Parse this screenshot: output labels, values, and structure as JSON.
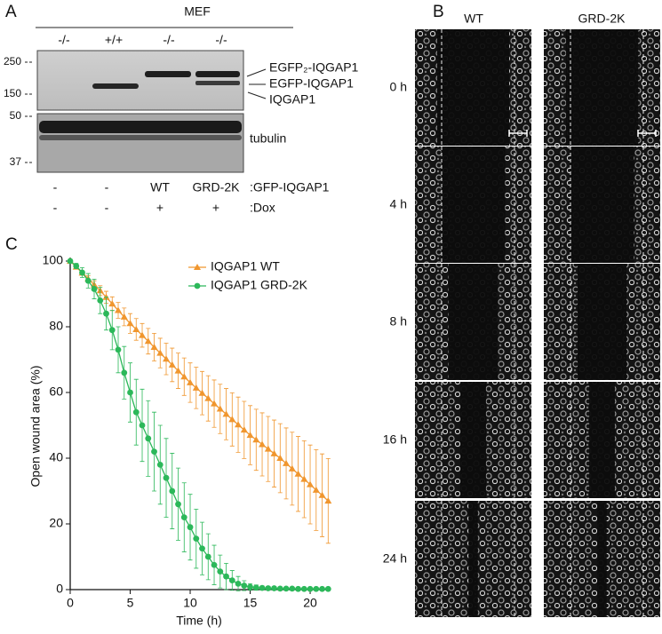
{
  "panel_a": {
    "label": "A",
    "group": "MEF",
    "genotypes": [
      "-/-",
      "+/+",
      "-/-",
      "-/-"
    ],
    "markers": [
      "250",
      "150",
      "50",
      "37"
    ],
    "band_labels": [
      "EGFP₂-IQGAP1",
      "EGFP-IQGAP1",
      "IQGAP1"
    ],
    "loading_label": "tubulin",
    "construct_row": [
      "-",
      "-",
      "WT",
      "GRD-2K",
      ":GFP-IQGAP1"
    ],
    "dox_row": [
      "-",
      "-",
      "+",
      "+",
      ":Dox"
    ]
  },
  "panel_b": {
    "label": "B",
    "columns": [
      "WT",
      "GRD-2K"
    ],
    "rows": [
      "0 h",
      "4 h",
      "8 h",
      "16 h",
      "24 h"
    ]
  },
  "chart_data": {
    "type": "line",
    "panel_label": "C",
    "x_label": "Time (h)",
    "y_label": "Open wound area (%)",
    "xlim": [
      0,
      21.7
    ],
    "ylim": [
      0,
      100
    ],
    "xticks": [
      0,
      5,
      10,
      15,
      20
    ],
    "yticks": [
      0,
      20,
      40,
      60,
      80,
      100
    ],
    "x": [
      0,
      0.5,
      1,
      1.5,
      2,
      2.5,
      3,
      3.5,
      4,
      4.5,
      5,
      5.5,
      6,
      6.5,
      7,
      7.5,
      8,
      8.5,
      9,
      9.5,
      10,
      10.5,
      11,
      11.5,
      12,
      12.5,
      13,
      13.5,
      14,
      14.5,
      15,
      15.5,
      16,
      16.5,
      17,
      17.5,
      18,
      18.5,
      19,
      19.5,
      20,
      20.5,
      21,
      21.5
    ],
    "series": [
      {
        "name": "IQGAP1 WT",
        "color": "#f0962e",
        "marker": "triangle",
        "values": [
          100,
          98.2,
          96.4,
          94.6,
          92.8,
          91,
          89,
          87,
          85,
          83,
          81,
          79.2,
          77.4,
          75.6,
          73.8,
          72,
          70.2,
          68.4,
          66.6,
          64.8,
          63,
          61.4,
          59.8,
          58.2,
          56.6,
          55,
          53.4,
          51.8,
          50.2,
          48.6,
          47,
          45.6,
          44.2,
          42.8,
          41.4,
          40,
          38.4,
          36.8,
          35.2,
          33.6,
          32,
          30.3,
          28.7,
          27
        ],
        "errors": [
          0,
          0.3,
          0.6,
          0.9,
          1.2,
          1.5,
          1.8,
          2.1,
          2.4,
          2.7,
          3,
          3.3,
          3.6,
          3.9,
          4.2,
          4.5,
          4.8,
          5.1,
          5.4,
          5.7,
          6,
          6.3,
          6.6,
          6.9,
          7.2,
          7.5,
          7.8,
          8.1,
          8.4,
          8.7,
          9,
          9.3,
          9.6,
          9.9,
          10.2,
          10.5,
          10.8,
          11.1,
          11.4,
          11.7,
          12,
          12.3,
          12.6,
          12.9
        ]
      },
      {
        "name": "IQGAP1 GRD-2K",
        "color": "#2cb85a",
        "marker": "circle",
        "values": [
          100,
          98.5,
          96.5,
          94,
          91.5,
          88,
          84,
          79,
          73,
          66,
          60,
          54,
          50,
          46,
          42,
          38,
          34,
          30,
          26,
          22,
          19,
          15.5,
          12.5,
          10,
          7.5,
          5.5,
          4,
          2.8,
          1.8,
          1.2,
          0.8,
          0.6,
          0.5,
          0.4,
          0.4,
          0.3,
          0.3,
          0.3,
          0.2,
          0.2,
          0.2,
          0.2,
          0.2,
          0.2
        ],
        "errors": [
          0,
          0.8,
          1.5,
          2.2,
          3,
          4,
          5,
          6,
          7,
          8,
          9,
          10,
          11,
          11.5,
          12,
          12,
          12,
          11.5,
          11,
          10.5,
          10,
          9,
          8,
          7,
          6,
          5,
          4,
          3,
          2.2,
          1.5,
          1,
          0.8,
          0.6,
          0.5,
          0.4,
          0.4,
          0.3,
          0.3,
          0.3,
          0.2,
          0.2,
          0.2,
          0.2,
          0.2
        ]
      }
    ]
  }
}
